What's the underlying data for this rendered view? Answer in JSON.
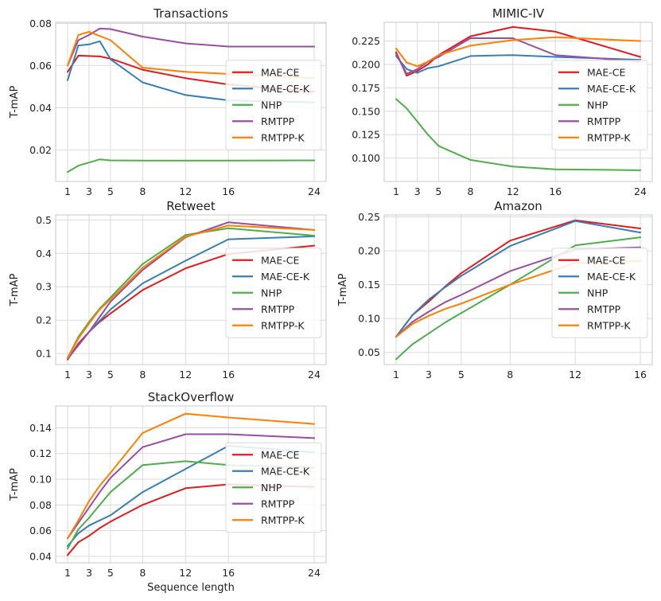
{
  "figure": {
    "xlabel_bottom": "Sequence length"
  },
  "colors": {
    "MAE-CE": "#e41a1c",
    "MAE-CE-K": "#377eb8",
    "NHP": "#4daf4a",
    "RMTPP": "#984ea3",
    "RMTPP-K": "#ff7f00"
  },
  "chart_data": [
    {
      "type": "line",
      "title": "Transactions",
      "ylabel": "T-mAP",
      "xlabel": "",
      "xlim": [
        1,
        24
      ],
      "ylim": [
        0.005,
        0.0805
      ],
      "xticks": [
        1,
        3,
        5,
        8,
        12,
        16,
        24
      ],
      "yticks": [
        0.02,
        0.04,
        0.06,
        0.08
      ],
      "ytick_labels": [
        "0.02",
        "0.04",
        "0.06",
        "0.08"
      ],
      "x": [
        1,
        2,
        3,
        4,
        5,
        8,
        12,
        16,
        24
      ],
      "series": [
        {
          "name": "MAE-CE",
          "values": [
            0.057,
            0.0647,
            0.0645,
            0.0643,
            0.0633,
            0.058,
            0.054,
            0.051,
            0.0475
          ]
        },
        {
          "name": "MAE-CE-K",
          "values": [
            0.053,
            0.0695,
            0.07,
            0.0715,
            0.063,
            0.052,
            0.046,
            0.0435,
            0.0425
          ]
        },
        {
          "name": "NHP",
          "values": [
            0.0095,
            0.0125,
            0.014,
            0.0155,
            0.015,
            0.0149,
            0.0149,
            0.0149,
            0.015
          ]
        },
        {
          "name": "RMTPP",
          "values": [
            0.06,
            0.072,
            0.0745,
            0.0775,
            0.0773,
            0.0737,
            0.0705,
            0.069,
            0.069
          ]
        },
        {
          "name": "RMTPP-K",
          "values": [
            0.06,
            0.0745,
            0.076,
            0.074,
            0.072,
            0.059,
            0.057,
            0.056,
            0.054
          ]
        }
      ],
      "legend": "center-right"
    },
    {
      "type": "line",
      "title": "MIMIC-IV",
      "ylabel": "",
      "xlabel": "",
      "xlim": [
        1,
        24
      ],
      "ylim": [
        0.075,
        0.245
      ],
      "xticks": [
        1,
        3,
        5,
        8,
        12,
        16,
        24
      ],
      "yticks": [
        0.1,
        0.125,
        0.15,
        0.175,
        0.2,
        0.225
      ],
      "ytick_labels": [
        "0.100",
        "0.125",
        "0.150",
        "0.175",
        "0.200",
        "0.225"
      ],
      "x": [
        1,
        2,
        3,
        4,
        5,
        8,
        12,
        16,
        24
      ],
      "series": [
        {
          "name": "MAE-CE",
          "values": [
            0.213,
            0.188,
            0.193,
            0.2,
            0.21,
            0.23,
            0.24,
            0.235,
            0.208
          ]
        },
        {
          "name": "MAE-CE-K",
          "values": [
            0.209,
            0.195,
            0.191,
            0.196,
            0.198,
            0.209,
            0.21,
            0.208,
            0.205
          ]
        },
        {
          "name": "NHP",
          "values": [
            0.163,
            0.153,
            0.139,
            0.125,
            0.113,
            0.098,
            0.091,
            0.088,
            0.087
          ]
        },
        {
          "name": "RMTPP",
          "values": [
            0.211,
            0.19,
            0.195,
            0.203,
            0.208,
            0.228,
            0.228,
            0.21,
            0.203
          ]
        },
        {
          "name": "RMTPP-K",
          "values": [
            0.217,
            0.202,
            0.198,
            0.203,
            0.21,
            0.22,
            0.226,
            0.229,
            0.225
          ]
        }
      ],
      "legend": "center-right"
    },
    {
      "type": "line",
      "title": "Retweet",
      "ylabel": "T-mAP",
      "xlabel": "",
      "xlim": [
        1,
        24
      ],
      "ylim": [
        0.067,
        0.515
      ],
      "xticks": [
        1,
        3,
        5,
        8,
        12,
        16,
        24
      ],
      "yticks": [
        0.1,
        0.2,
        0.3,
        0.4,
        0.5
      ],
      "ytick_labels": [
        "0.1",
        "0.2",
        "0.3",
        "0.4",
        "0.5"
      ],
      "x": [
        1,
        2,
        3,
        4,
        5,
        8,
        12,
        16,
        24
      ],
      "series": [
        {
          "name": "MAE-CE",
          "values": [
            0.082,
            0.13,
            0.165,
            0.195,
            0.22,
            0.29,
            0.355,
            0.398,
            0.423
          ]
        },
        {
          "name": "MAE-CE-K",
          "values": [
            0.085,
            0.125,
            0.165,
            0.198,
            0.232,
            0.31,
            0.378,
            0.442,
            0.451
          ]
        },
        {
          "name": "NHP",
          "values": [
            0.087,
            0.15,
            0.195,
            0.235,
            0.268,
            0.368,
            0.455,
            0.475,
            0.453
          ]
        },
        {
          "name": "RMTPP",
          "values": [
            0.084,
            0.125,
            0.165,
            0.21,
            0.255,
            0.35,
            0.448,
            0.493,
            0.47
          ]
        },
        {
          "name": "RMTPP-K",
          "values": [
            0.087,
            0.145,
            0.19,
            0.232,
            0.262,
            0.357,
            0.45,
            0.483,
            0.47
          ]
        }
      ],
      "legend": "center-right"
    },
    {
      "type": "line",
      "title": "Amazon",
      "ylabel": "T-mAP",
      "xlabel": "",
      "xlim": [
        1,
        16
      ],
      "ylim": [
        0.032,
        0.253
      ],
      "xticks": [
        1,
        3,
        5,
        8,
        12,
        16
      ],
      "yticks": [
        0.05,
        0.1,
        0.15,
        0.2,
        0.25
      ],
      "ytick_labels": [
        "0.05",
        "0.10",
        "0.15",
        "0.20",
        "0.25"
      ],
      "x": [
        1,
        2,
        3,
        4,
        5,
        8,
        12,
        16
      ],
      "series": [
        {
          "name": "MAE-CE",
          "values": [
            0.073,
            0.105,
            0.125,
            0.147,
            0.167,
            0.215,
            0.245,
            0.233
          ]
        },
        {
          "name": "MAE-CE-K",
          "values": [
            0.073,
            0.105,
            0.128,
            0.146,
            0.163,
            0.207,
            0.244,
            0.227
          ]
        },
        {
          "name": "NHP",
          "values": [
            0.04,
            0.062,
            0.078,
            0.094,
            0.108,
            0.15,
            0.208,
            0.22
          ]
        },
        {
          "name": "RMTPP",
          "values": [
            0.073,
            0.095,
            0.11,
            0.124,
            0.135,
            0.17,
            0.202,
            0.205
          ]
        },
        {
          "name": "RMTPP-K",
          "values": [
            0.073,
            0.092,
            0.104,
            0.114,
            0.122,
            0.15,
            0.182,
            0.185
          ]
        }
      ],
      "legend": "center-right"
    },
    {
      "type": "line",
      "title": "StackOverflow",
      "ylabel": "T-mAP",
      "xlabel": "Sequence length",
      "xlim": [
        1,
        24
      ],
      "ylim": [
        0.035,
        0.157
      ],
      "xticks": [
        1,
        3,
        5,
        8,
        12,
        16,
        24
      ],
      "yticks": [
        0.04,
        0.06,
        0.08,
        0.1,
        0.12,
        0.14
      ],
      "ytick_labels": [
        "0.04",
        "0.06",
        "0.08",
        "0.10",
        "0.12",
        "0.14"
      ],
      "x": [
        1,
        2,
        3,
        4,
        5,
        8,
        12,
        16,
        24
      ],
      "series": [
        {
          "name": "MAE-CE",
          "values": [
            0.041,
            0.051,
            0.056,
            0.062,
            0.067,
            0.08,
            0.093,
            0.096,
            0.094
          ]
        },
        {
          "name": "MAE-CE-K",
          "values": [
            0.048,
            0.058,
            0.064,
            0.068,
            0.072,
            0.09,
            0.108,
            0.126,
            0.121
          ]
        },
        {
          "name": "NHP",
          "values": [
            0.046,
            0.061,
            0.07,
            0.08,
            0.09,
            0.111,
            0.114,
            0.111,
            0.109
          ]
        },
        {
          "name": "RMTPP",
          "values": [
            0.054,
            0.066,
            0.078,
            0.09,
            0.101,
            0.125,
            0.135,
            0.135,
            0.132
          ]
        },
        {
          "name": "RMTPP-K",
          "values": [
            0.054,
            0.068,
            0.083,
            0.095,
            0.105,
            0.136,
            0.151,
            0.148,
            0.143
          ]
        }
      ],
      "legend": "center-right"
    }
  ]
}
